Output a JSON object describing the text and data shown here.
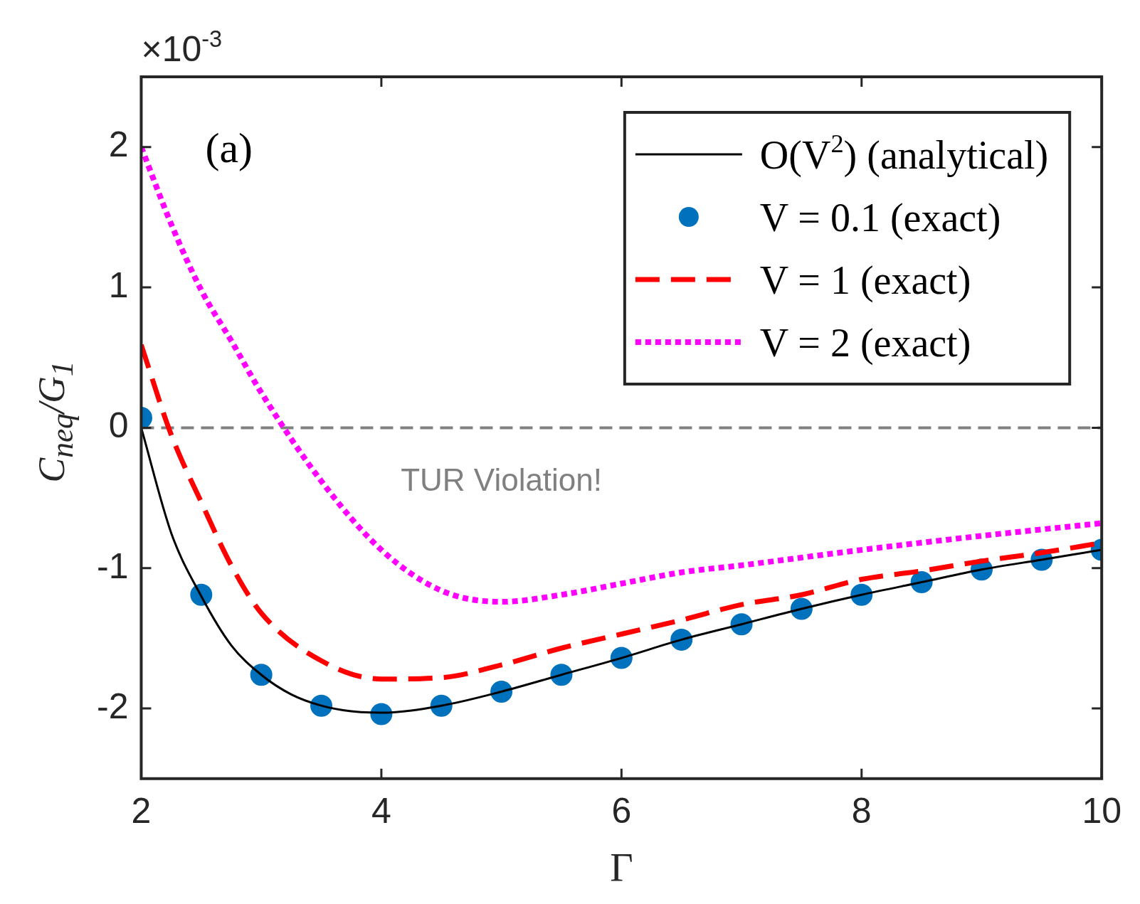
{
  "chart_data": {
    "type": "line",
    "xlabel": "Γ",
    "ylabel": "C$_{neq}$/G$_{1}$",
    "xlim": [
      2,
      10
    ],
    "xticks": [
      2,
      4,
      6,
      8,
      10
    ],
    "ylim": [
      -2.5,
      2.5
    ],
    "yticks": [
      -2,
      -1,
      0,
      1,
      2
    ],
    "grid": false,
    "legend": "top right",
    "annotations": [
      "×10$^{-3}$",
      "(a)",
      "TUR Violation!"
    ],
    "ref_lines": [
      {
        "axis": "y",
        "value": 0,
        "color": "#808080",
        "line_style": "dashed"
      }
    ],
    "series": [
      {
        "name": "O(V$^{2}$) (analytical)",
        "type": "line",
        "color": "#000000",
        "line_style": "solid",
        "marker": "none",
        "x": [
          2,
          2.25,
          2.5,
          2.75,
          3,
          3.25,
          3.5,
          3.75,
          4,
          4.5,
          5,
          5.5,
          6,
          6.5,
          7,
          7.5,
          8,
          8.5,
          9,
          9.5,
          10
        ],
        "values": [
          0,
          -0.75,
          -1.2,
          -1.55,
          -1.76,
          -1.9,
          -1.98,
          -2.02,
          -2.03,
          -1.98,
          -1.88,
          -1.76,
          -1.64,
          -1.51,
          -1.4,
          -1.29,
          -1.19,
          -1.1,
          -1.01,
          -0.94,
          -0.87
        ]
      },
      {
        "name": "V = 0.1 (exact)",
        "type": "scatter",
        "color": "#0072bd",
        "marker": "circle",
        "x": [
          2,
          2.5,
          3,
          3.5,
          4,
          4.5,
          5,
          5.5,
          6,
          6.5,
          7,
          7.5,
          8,
          8.5,
          9,
          9.5,
          10
        ],
        "values": [
          0.07,
          -1.19,
          -1.76,
          -1.98,
          -2.04,
          -1.98,
          -1.88,
          -1.76,
          -1.64,
          -1.51,
          -1.4,
          -1.29,
          -1.19,
          -1.1,
          -1.01,
          -0.94,
          -0.87
        ]
      },
      {
        "name": "V = 1 (exact)",
        "type": "line",
        "color": "#ff0000",
        "line_style": "dashed",
        "marker": "none",
        "x": [
          2,
          2.25,
          2.5,
          2.75,
          3,
          3.5,
          4,
          4.5,
          5,
          5.5,
          6,
          6.5,
          7,
          7.5,
          8,
          8.5,
          9,
          9.5,
          10
        ],
        "values": [
          0.59,
          -0.05,
          -0.53,
          -0.98,
          -1.32,
          -1.66,
          -1.79,
          -1.78,
          -1.69,
          -1.57,
          -1.47,
          -1.37,
          -1.26,
          -1.19,
          -1.08,
          -1.02,
          -0.95,
          -0.89,
          -0.82
        ]
      },
      {
        "name": "V = 2 (exact)",
        "type": "line",
        "color": "#ff00ff",
        "line_style": "dotted",
        "marker": "none",
        "x": [
          2,
          2.25,
          2.5,
          2.75,
          3,
          3.5,
          4,
          4.5,
          5,
          5.5,
          6,
          6.5,
          7,
          8,
          9,
          10
        ],
        "values": [
          2,
          1.45,
          0.98,
          0.62,
          0.25,
          -0.38,
          -0.87,
          -1.16,
          -1.24,
          -1.19,
          -1.11,
          -1.03,
          -0.98,
          -0.87,
          -0.77,
          -0.68
        ]
      }
    ]
  }
}
